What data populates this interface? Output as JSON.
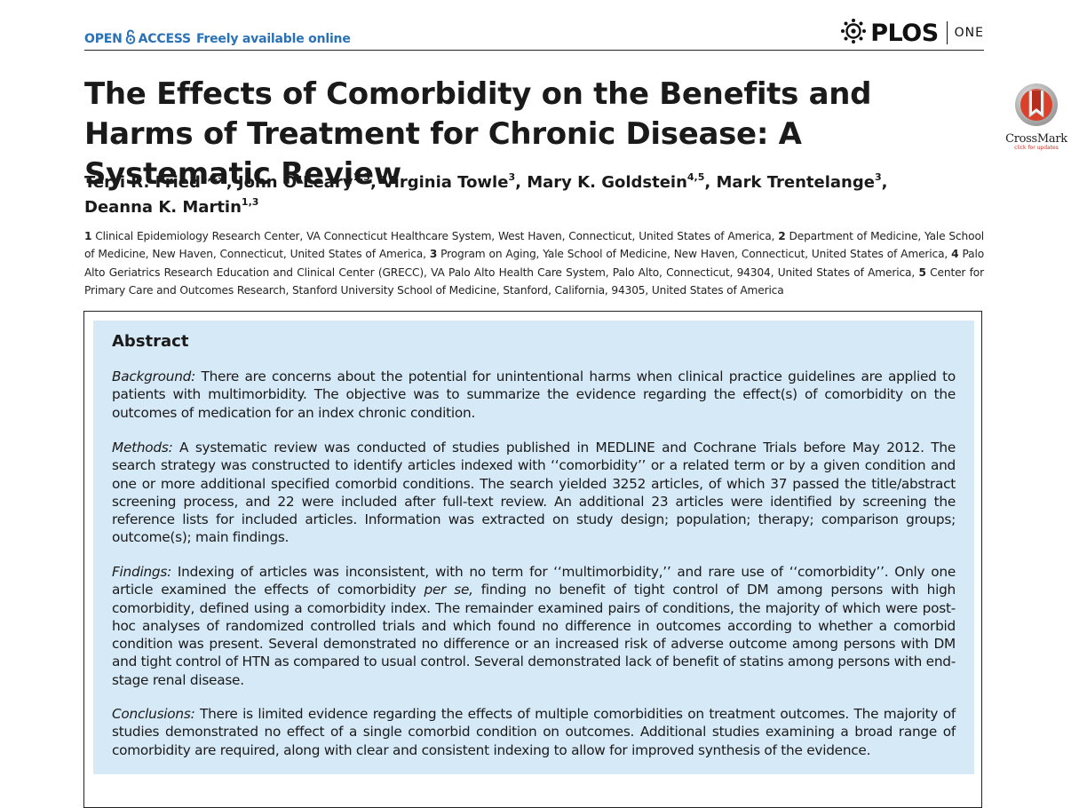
{
  "header": {
    "open_text": "OPEN",
    "access_text": "ACCESS",
    "free_text": "Freely available online",
    "brand": "PLOS",
    "brand_sub": "ONE",
    "accent_color": "#2a72b5"
  },
  "crossmark": {
    "label": "CrossMark",
    "sub": "click for updates"
  },
  "article": {
    "title": "The Effects of Comorbidity on the Benefits and Harms of Treatment for Chronic Disease: A Systematic Review",
    "authors": [
      {
        "name": "Terri R. Fried",
        "aff": "1,2",
        "note": "*"
      },
      {
        "name": "John O’Leary",
        "aff": "1,3"
      },
      {
        "name": "Virginia Towle",
        "aff": "3"
      },
      {
        "name": "Mary K. Goldstein",
        "aff": "4,5"
      },
      {
        "name": "Mark Trentelange",
        "aff": "3"
      },
      {
        "name": "Deanna K. Martin",
        "aff": "1,3"
      }
    ],
    "affiliations": [
      {
        "num": "1",
        "text": "Clinical Epidemiology Research Center, VA Connecticut Healthcare System, West Haven, Connecticut, United States of America,"
      },
      {
        "num": "2",
        "text": "Department of Medicine, Yale School of Medicine, New Haven, Connecticut, United States of America,"
      },
      {
        "num": "3",
        "text": "Program on Aging, Yale School of Medicine, New Haven, Connecticut, United States of America,"
      },
      {
        "num": "4",
        "text": "Palo Alto Geriatrics Research Education and Clinical Center (GRECC), VA Palo Alto Health Care System, Palo Alto, Connecticut, 94304, United States of America,"
      },
      {
        "num": "5",
        "text": "Center for Primary Care and Outcomes Research, Stanford University School of Medicine, Stanford, California, 94305, United States of America"
      }
    ]
  },
  "abstract": {
    "heading": "Abstract",
    "box_color": "#d6e9f7",
    "background": {
      "label": "Background:",
      "text": " There are concerns about the potential for unintentional harms when clinical practice guidelines are applied to patients with multimorbidity. The objective was to summarize the evidence regarding the effect(s) of comorbidity on the outcomes of medication for an index chronic condition."
    },
    "methods": {
      "label": "Methods:",
      "text": " A systematic review was conducted of studies published in MEDLINE and Cochrane Trials before May 2012. The search strategy was constructed to identify articles indexed with ‘‘comorbidity’’ or a related term or by a given condition and one or more additional specified comorbid conditions. The search yielded 3252 articles, of which 37 passed the title/abstract screening process, and 22 were included after full-text review. An additional 23 articles were identified by screening the reference lists for included articles. Information was extracted on study design; population; therapy; comparison groups; outcome(s); main findings."
    },
    "findings": {
      "label": "Findings:",
      "text_a": " Indexing of articles was inconsistent, with no term for ‘‘multimorbidity,’’ and rare use of ‘‘comorbidity’’. Only one article examined the effects of comorbidity ",
      "emph": "per se,",
      "text_b": " finding no benefit of tight control of DM among persons with high comorbidity, defined using a comorbidity index. The remainder examined pairs of conditions, the majority of which were post-hoc analyses of randomized controlled trials and which found no difference in outcomes according to whether a comorbid condition was present. Several demonstrated no difference or an increased risk of adverse outcome among persons with DM and tight control of HTN as compared to usual control. Several demonstrated lack of benefit of statins among persons with end-stage renal disease."
    },
    "conclusions": {
      "label": "Conclusions:",
      "text": " There is limited evidence regarding the effects of multiple comorbidities on treatment outcomes. The majority of studies demonstrated no effect of a single comorbid condition on outcomes. Additional studies examining a broad range of comorbidity are required, along with clear and consistent indexing to allow for improved synthesis of the evidence."
    }
  }
}
